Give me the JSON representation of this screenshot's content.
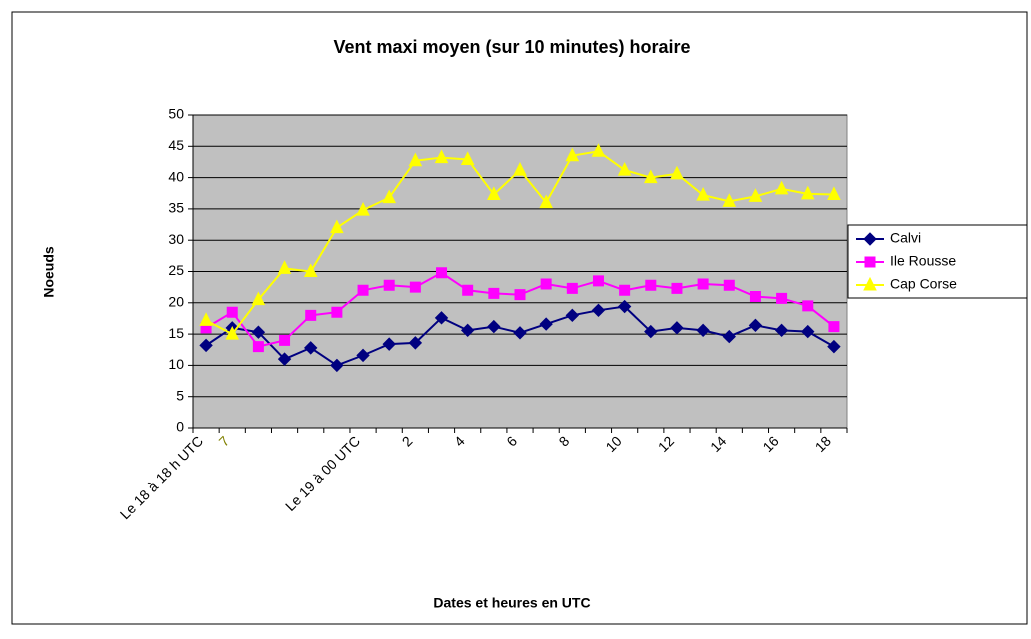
{
  "chart_data": {
    "type": "line",
    "title": "Vent maxi moyen (sur 10 minutes) horaire",
    "y_label": "Noeuds",
    "x_label": "Dates et heures en UTC",
    "categories": [
      "Le 18 à 18 h UTC",
      "7",
      null,
      null,
      null,
      null,
      "Le 19 à 00 UTC",
      null,
      "2",
      null,
      "4",
      null,
      "6",
      null,
      "8",
      null,
      "10",
      null,
      "12",
      null,
      "14",
      null,
      "16",
      null,
      "18"
    ],
    "series": [
      {
        "name": "Calvi",
        "color": "#000080",
        "marker": "diamond",
        "values": [
          13.2,
          16,
          15.3,
          11,
          12.8,
          10,
          11.6,
          13.4,
          13.6,
          17.6,
          15.6,
          16.2,
          15.2,
          16.6,
          18,
          18.8,
          19.4,
          15.4,
          16,
          15.6,
          14.6,
          16.4,
          15.6,
          15.4,
          13
        ]
      },
      {
        "name": "Ile Rousse",
        "color": "#ff00ff",
        "marker": "square",
        "values": [
          16,
          18.5,
          13,
          14,
          18,
          18.5,
          22,
          22.8,
          22.5,
          24.8,
          22,
          21.5,
          21.3,
          23,
          22.3,
          23.5,
          22,
          22.8,
          22.3,
          23,
          22.8,
          21,
          20.7,
          19.5,
          16.2
        ]
      },
      {
        "name": "Cap Corse",
        "color": "#ffff00",
        "marker": "triangle",
        "values": [
          17.2,
          15,
          20.5,
          25.5,
          25,
          32,
          34.8,
          36.8,
          42.7,
          43.2,
          42.9,
          37.3,
          41.2,
          36,
          43.5,
          44.2,
          41.2,
          40,
          40.6,
          37.2,
          36.2,
          37,
          38.2,
          37.4,
          37.3
        ]
      }
    ],
    "ylim": [
      0,
      50
    ],
    "yticks": [
      0,
      5,
      10,
      15,
      20,
      25,
      30,
      35,
      40,
      45,
      50
    ],
    "grid": true,
    "legend": "right",
    "plot_background": "#c0c0c0"
  }
}
